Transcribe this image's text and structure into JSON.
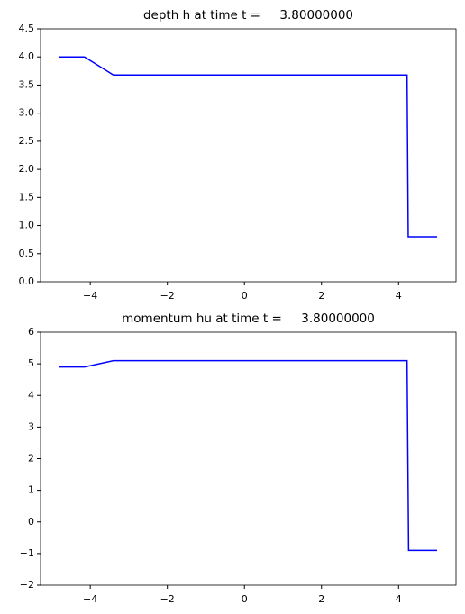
{
  "chart_data": [
    {
      "type": "line",
      "title": "depth h at time t =     3.80000000",
      "x": [
        -4.8,
        -4.15,
        -3.4,
        4.22,
        4.25,
        5.0
      ],
      "series": [
        {
          "color": "#0000ff",
          "values": [
            4.0,
            4.0,
            3.68,
            3.68,
            0.8,
            0.8
          ]
        }
      ],
      "xlim": [
        -5.29,
        5.49
      ],
      "xticks": [
        {
          "value": -4,
          "label": "−4"
        },
        {
          "value": -2,
          "label": "−2"
        },
        0,
        2,
        4
      ],
      "ylim": [
        0,
        4.5
      ],
      "yticks": [
        {
          "value": 0,
          "label": "0.0"
        },
        0.5,
        {
          "value": 1,
          "label": "1.0"
        },
        1.5,
        {
          "value": 2,
          "label": "2.0"
        },
        2.5,
        {
          "value": 3,
          "label": "3.0"
        },
        3.5,
        {
          "value": 4,
          "label": "4.0"
        },
        4.5
      ]
    },
    {
      "type": "line",
      "title": "momentum hu at time t =     3.80000000",
      "x": [
        -4.8,
        -4.15,
        -3.4,
        4.22,
        4.26,
        5.0
      ],
      "series": [
        {
          "color": "#0000ff",
          "values": [
            4.9,
            4.9,
            5.1,
            5.1,
            -0.9,
            -0.9
          ]
        }
      ],
      "xlim": [
        -5.29,
        5.49
      ],
      "xticks": [
        {
          "value": -4,
          "label": "−4"
        },
        {
          "value": -2,
          "label": "−2"
        },
        0,
        2,
        4
      ],
      "ylim": [
        -2,
        6
      ],
      "yticks": [
        {
          "value": -2,
          "label": "−2"
        },
        {
          "value": -1,
          "label": "−1"
        },
        0,
        1,
        2,
        3,
        4,
        5,
        6
      ]
    }
  ]
}
